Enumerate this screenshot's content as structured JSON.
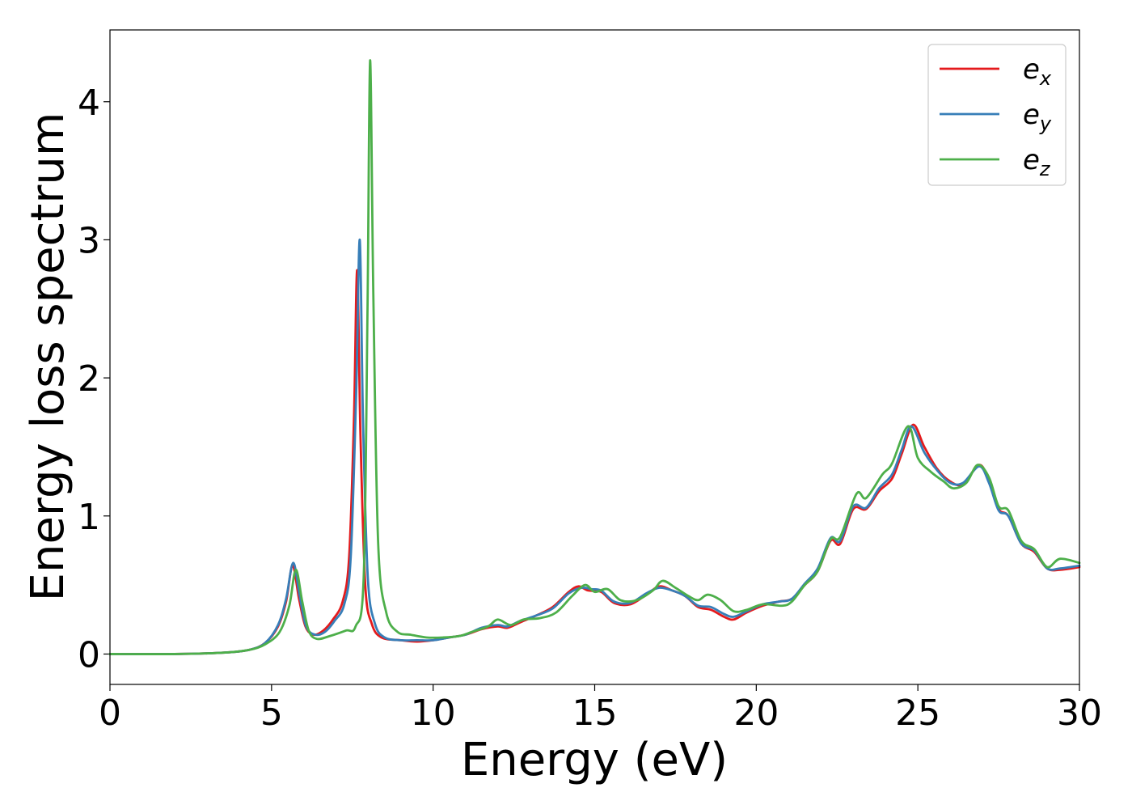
{
  "chart_data": {
    "type": "line",
    "title": "",
    "xlabel": "Energy (eV)",
    "ylabel": "Energy loss spectrum",
    "xlim": [
      0,
      30
    ],
    "ylim": [
      -0.22,
      4.52
    ],
    "xticks": [
      0,
      5,
      10,
      15,
      20,
      25,
      30
    ],
    "yticks": [
      0,
      1,
      2,
      3,
      4
    ],
    "grid": false,
    "legend": "top-right",
    "series": [
      {
        "name": "e",
        "subscript": "x",
        "color": "#e41a1c",
        "points": [
          [
            0,
            0.0
          ],
          [
            2,
            0.0
          ],
          [
            3.5,
            0.01
          ],
          [
            4.3,
            0.03
          ],
          [
            4.8,
            0.08
          ],
          [
            5.2,
            0.2
          ],
          [
            5.45,
            0.38
          ],
          [
            5.65,
            0.64
          ],
          [
            5.85,
            0.4
          ],
          [
            6.05,
            0.2
          ],
          [
            6.3,
            0.14
          ],
          [
            6.6,
            0.17
          ],
          [
            6.9,
            0.25
          ],
          [
            7.2,
            0.38
          ],
          [
            7.4,
            0.7
          ],
          [
            7.55,
            1.7
          ],
          [
            7.65,
            2.78
          ],
          [
            7.75,
            1.6
          ],
          [
            7.9,
            0.5
          ],
          [
            8.1,
            0.22
          ],
          [
            8.4,
            0.12
          ],
          [
            9,
            0.1
          ],
          [
            9.5,
            0.09
          ],
          [
            10,
            0.1
          ],
          [
            10.5,
            0.12
          ],
          [
            11,
            0.14
          ],
          [
            11.5,
            0.18
          ],
          [
            12,
            0.2
          ],
          [
            12.3,
            0.19
          ],
          [
            12.7,
            0.23
          ],
          [
            13.2,
            0.28
          ],
          [
            13.7,
            0.34
          ],
          [
            14.2,
            0.45
          ],
          [
            14.5,
            0.49
          ],
          [
            14.8,
            0.46
          ],
          [
            15.2,
            0.45
          ],
          [
            15.6,
            0.37
          ],
          [
            16.1,
            0.36
          ],
          [
            16.6,
            0.43
          ],
          [
            17.0,
            0.49
          ],
          [
            17.4,
            0.46
          ],
          [
            17.8,
            0.42
          ],
          [
            18.2,
            0.34
          ],
          [
            18.6,
            0.32
          ],
          [
            19.0,
            0.27
          ],
          [
            19.3,
            0.25
          ],
          [
            19.7,
            0.3
          ],
          [
            20.2,
            0.35
          ],
          [
            20.7,
            0.38
          ],
          [
            21.1,
            0.4
          ],
          [
            21.5,
            0.5
          ],
          [
            21.9,
            0.6
          ],
          [
            22.3,
            0.82
          ],
          [
            22.6,
            0.8
          ],
          [
            23.0,
            1.05
          ],
          [
            23.4,
            1.05
          ],
          [
            23.8,
            1.18
          ],
          [
            24.2,
            1.27
          ],
          [
            24.5,
            1.45
          ],
          [
            24.85,
            1.66
          ],
          [
            25.2,
            1.5
          ],
          [
            25.6,
            1.34
          ],
          [
            26.0,
            1.25
          ],
          [
            26.4,
            1.23
          ],
          [
            26.9,
            1.37
          ],
          [
            27.2,
            1.25
          ],
          [
            27.5,
            1.05
          ],
          [
            27.8,
            1.0
          ],
          [
            28.2,
            0.8
          ],
          [
            28.6,
            0.74
          ],
          [
            29.0,
            0.62
          ],
          [
            29.4,
            0.61
          ],
          [
            30,
            0.63
          ]
        ]
      },
      {
        "name": "e",
        "subscript": "y",
        "color": "#377eb8",
        "points": [
          [
            0,
            0.0
          ],
          [
            2,
            0.0
          ],
          [
            3.5,
            0.01
          ],
          [
            4.3,
            0.03
          ],
          [
            4.8,
            0.08
          ],
          [
            5.2,
            0.21
          ],
          [
            5.45,
            0.4
          ],
          [
            5.67,
            0.66
          ],
          [
            5.87,
            0.42
          ],
          [
            6.07,
            0.2
          ],
          [
            6.35,
            0.14
          ],
          [
            6.65,
            0.16
          ],
          [
            6.95,
            0.24
          ],
          [
            7.25,
            0.36
          ],
          [
            7.45,
            0.7
          ],
          [
            7.62,
            1.9
          ],
          [
            7.73,
            3.0
          ],
          [
            7.83,
            1.7
          ],
          [
            7.98,
            0.55
          ],
          [
            8.2,
            0.22
          ],
          [
            8.5,
            0.12
          ],
          [
            9,
            0.1
          ],
          [
            9.5,
            0.1
          ],
          [
            10,
            0.1
          ],
          [
            10.5,
            0.12
          ],
          [
            11,
            0.14
          ],
          [
            11.5,
            0.19
          ],
          [
            12,
            0.21
          ],
          [
            12.3,
            0.2
          ],
          [
            12.7,
            0.24
          ],
          [
            13.2,
            0.28
          ],
          [
            13.7,
            0.33
          ],
          [
            14.2,
            0.44
          ],
          [
            14.6,
            0.48
          ],
          [
            14.9,
            0.47
          ],
          [
            15.2,
            0.46
          ],
          [
            15.6,
            0.38
          ],
          [
            16.1,
            0.37
          ],
          [
            16.6,
            0.44
          ],
          [
            17.0,
            0.48
          ],
          [
            17.4,
            0.46
          ],
          [
            17.8,
            0.42
          ],
          [
            18.2,
            0.35
          ],
          [
            18.6,
            0.34
          ],
          [
            19.0,
            0.29
          ],
          [
            19.3,
            0.27
          ],
          [
            19.7,
            0.31
          ],
          [
            20.2,
            0.36
          ],
          [
            20.7,
            0.38
          ],
          [
            21.1,
            0.4
          ],
          [
            21.5,
            0.51
          ],
          [
            21.9,
            0.62
          ],
          [
            22.3,
            0.84
          ],
          [
            22.6,
            0.82
          ],
          [
            23.0,
            1.07
          ],
          [
            23.4,
            1.06
          ],
          [
            23.8,
            1.2
          ],
          [
            24.2,
            1.3
          ],
          [
            24.5,
            1.48
          ],
          [
            24.8,
            1.65
          ],
          [
            25.2,
            1.46
          ],
          [
            25.6,
            1.33
          ],
          [
            26.0,
            1.24
          ],
          [
            26.4,
            1.24
          ],
          [
            26.9,
            1.36
          ],
          [
            27.2,
            1.24
          ],
          [
            27.5,
            1.04
          ],
          [
            27.8,
            1.0
          ],
          [
            28.2,
            0.8
          ],
          [
            28.6,
            0.75
          ],
          [
            29.0,
            0.62
          ],
          [
            29.4,
            0.62
          ],
          [
            30,
            0.64
          ]
        ]
      },
      {
        "name": "e",
        "subscript": "z",
        "color": "#4daf4a",
        "points": [
          [
            0,
            0.0
          ],
          [
            2,
            0.0
          ],
          [
            3.5,
            0.01
          ],
          [
            4.3,
            0.03
          ],
          [
            4.8,
            0.07
          ],
          [
            5.25,
            0.16
          ],
          [
            5.55,
            0.35
          ],
          [
            5.75,
            0.61
          ],
          [
            5.95,
            0.38
          ],
          [
            6.15,
            0.17
          ],
          [
            6.4,
            0.11
          ],
          [
            6.8,
            0.13
          ],
          [
            7.3,
            0.17
          ],
          [
            7.6,
            0.2
          ],
          [
            7.85,
            0.55
          ],
          [
            7.97,
            2.5
          ],
          [
            8.05,
            4.3
          ],
          [
            8.15,
            2.6
          ],
          [
            8.3,
            0.8
          ],
          [
            8.55,
            0.3
          ],
          [
            8.9,
            0.16
          ],
          [
            9.3,
            0.14
          ],
          [
            9.8,
            0.12
          ],
          [
            10.3,
            0.12
          ],
          [
            10.8,
            0.13
          ],
          [
            11.2,
            0.16
          ],
          [
            11.7,
            0.2
          ],
          [
            12.0,
            0.25
          ],
          [
            12.4,
            0.21
          ],
          [
            12.8,
            0.25
          ],
          [
            13.3,
            0.26
          ],
          [
            13.8,
            0.3
          ],
          [
            14.3,
            0.42
          ],
          [
            14.7,
            0.5
          ],
          [
            15.0,
            0.45
          ],
          [
            15.4,
            0.47
          ],
          [
            15.8,
            0.39
          ],
          [
            16.3,
            0.39
          ],
          [
            16.8,
            0.46
          ],
          [
            17.1,
            0.53
          ],
          [
            17.5,
            0.48
          ],
          [
            17.9,
            0.42
          ],
          [
            18.2,
            0.39
          ],
          [
            18.5,
            0.43
          ],
          [
            18.9,
            0.39
          ],
          [
            19.3,
            0.31
          ],
          [
            19.7,
            0.32
          ],
          [
            20.2,
            0.36
          ],
          [
            20.8,
            0.35
          ],
          [
            21.1,
            0.38
          ],
          [
            21.5,
            0.5
          ],
          [
            21.9,
            0.6
          ],
          [
            22.3,
            0.83
          ],
          [
            22.6,
            0.85
          ],
          [
            23.1,
            1.16
          ],
          [
            23.4,
            1.13
          ],
          [
            23.9,
            1.3
          ],
          [
            24.2,
            1.38
          ],
          [
            24.7,
            1.65
          ],
          [
            25.0,
            1.42
          ],
          [
            25.4,
            1.32
          ],
          [
            25.8,
            1.25
          ],
          [
            26.1,
            1.2
          ],
          [
            26.5,
            1.24
          ],
          [
            26.85,
            1.37
          ],
          [
            27.2,
            1.28
          ],
          [
            27.5,
            1.07
          ],
          [
            27.8,
            1.04
          ],
          [
            28.2,
            0.82
          ],
          [
            28.6,
            0.76
          ],
          [
            29.0,
            0.63
          ],
          [
            29.4,
            0.69
          ],
          [
            30,
            0.66
          ]
        ]
      }
    ]
  }
}
